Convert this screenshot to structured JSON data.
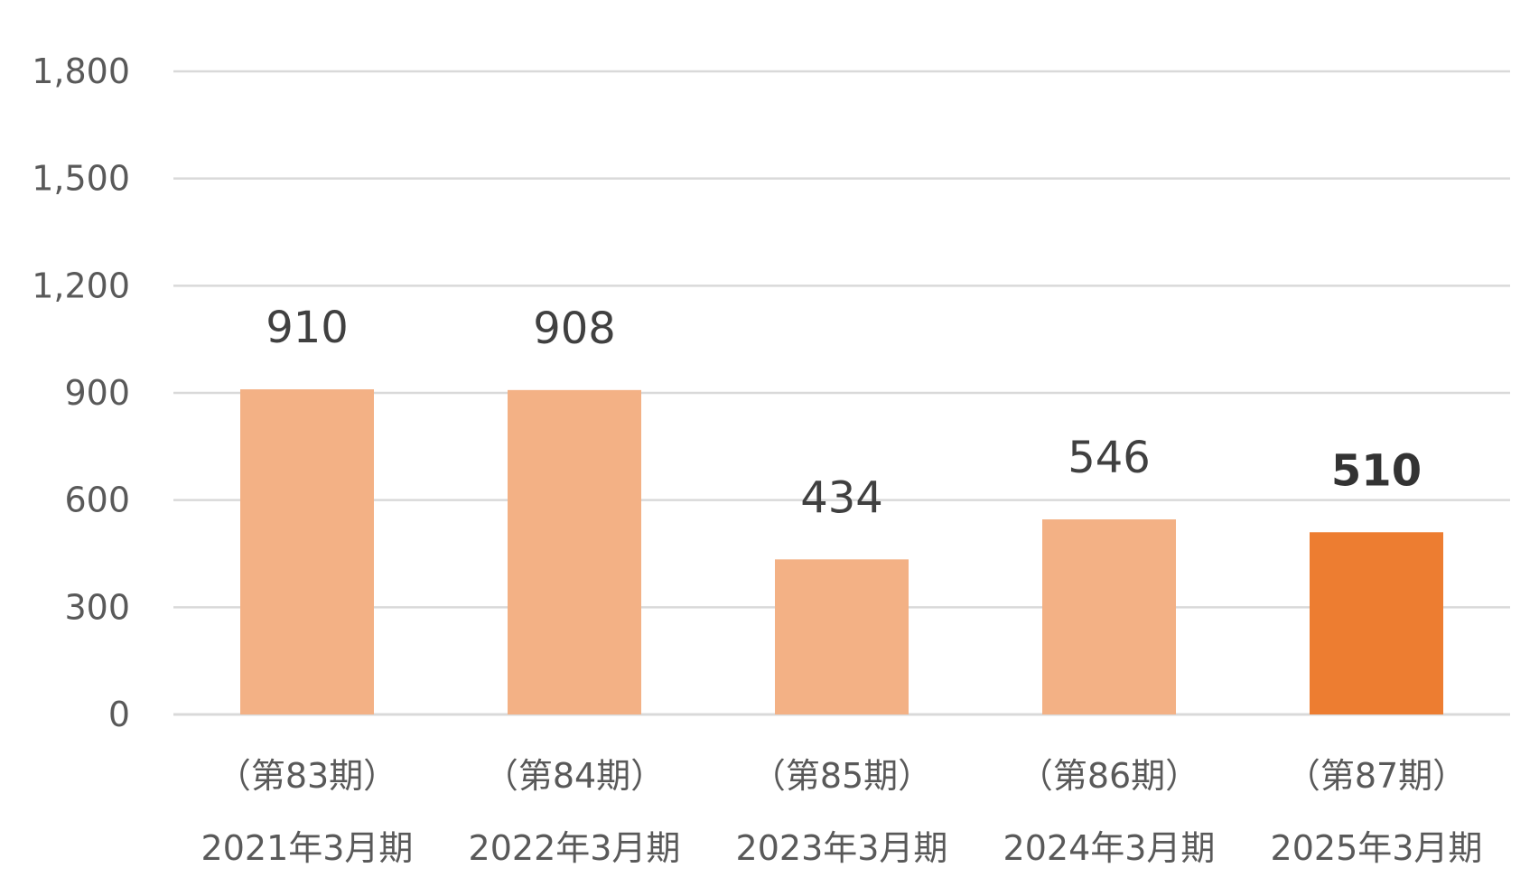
{
  "chart_data": {
    "type": "bar",
    "categories": [
      {
        "period": "（第83期）",
        "fiscal": "2021年3月期"
      },
      {
        "period": "（第84期）",
        "fiscal": "2022年3月期"
      },
      {
        "period": "（第85期）",
        "fiscal": "2023年3月期"
      },
      {
        "period": "（第86期）",
        "fiscal": "2024年3月期"
      },
      {
        "period": "（第87期）",
        "fiscal": "2025年3月期"
      }
    ],
    "values": [
      910,
      908,
      434,
      546,
      510
    ],
    "value_labels": [
      "910",
      "908",
      "434",
      "546",
      "510"
    ],
    "highlight_index": 4,
    "ylim": [
      0,
      1800
    ],
    "yticks": [
      0,
      300,
      600,
      900,
      1200,
      1500,
      1800
    ],
    "ytick_labels": [
      "0",
      "300",
      "600",
      "900",
      "1,200",
      "1,500",
      "1,800"
    ],
    "grid": true,
    "legend": "none",
    "colors": {
      "bar": "#f3b185",
      "highlight": "#ed7d31",
      "grid": "#d9d9d9",
      "text": "#595959"
    }
  }
}
